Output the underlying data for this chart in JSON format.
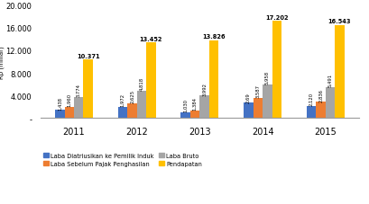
{
  "years": [
    "2011",
    "2012",
    "2013",
    "2014",
    "2015"
  ],
  "series": {
    "Laba Diatriusikan ke Pemilik Induk": [
      1438,
      1972,
      1030,
      2690,
      2120
    ],
    "Laba Sebelum Pajak Penghasilan": [
      1960,
      2625,
      1384,
      3587,
      2836
    ],
    "Laba Bruto": [
      3774,
      4818,
      3992,
      5958,
      5491
    ],
    "Pendapatan": [
      10371,
      13452,
      13826,
      17202,
      16543
    ]
  },
  "bar_labels": {
    "Laba Diatriusikan ke Pemilik Induk": [
      "1,438",
      "1,972",
      "1,030",
      "2,69",
      "2,120"
    ],
    "Laba Sebelum Pajak Penghasilan": [
      "1,960",
      "2,625",
      "1,384",
      "3,587",
      "2,836"
    ],
    "Laba Bruto": [
      "3,774",
      "4,818",
      "3,992",
      "5,958",
      "5,491"
    ],
    "Pendapatan": [
      "10.371",
      "13.452",
      "13.826",
      "17.202",
      "16.543"
    ]
  },
  "colors": {
    "Laba Diatriusikan ke Pemilik Induk": "#4472C4",
    "Laba Sebelum Pajak Penghasilan": "#ED7D31",
    "Laba Bruto": "#A5A5A5",
    "Pendapatan": "#FFC000"
  },
  "ylabel": "Rp (miliar)",
  "ylim": [
    0,
    20000
  ],
  "yticks": [
    0,
    4000,
    8000,
    12000,
    16000,
    20000
  ],
  "ytick_labels": [
    "-",
    "4.000",
    "8.000",
    "12.000",
    "16.000",
    "20.000"
  ],
  "bar_width": 0.15,
  "background_color": "#ffffff"
}
